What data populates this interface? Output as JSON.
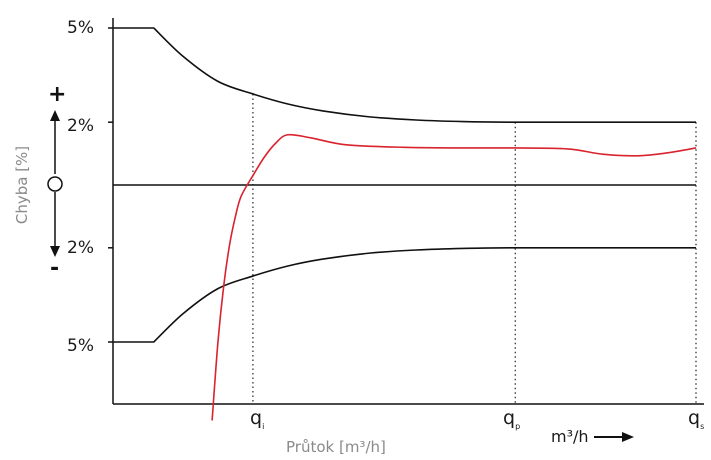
{
  "chart_data": {
    "type": "line",
    "title": "",
    "xlabel": "Průtok [m³/h]",
    "ylabel": "Chyba [%]",
    "x_unit_label": "m³/h",
    "x_ticks": [
      {
        "main": "q",
        "sub": "i"
      },
      {
        "main": "q",
        "sub": "p"
      },
      {
        "main": "q",
        "sub": "s"
      }
    ],
    "y_tick_labels": [
      {
        "label": "5%",
        "value": 5
      },
      {
        "label": "2%",
        "value": 2
      },
      {
        "label": "2%",
        "value": -2
      },
      {
        "label": "5%",
        "value": -5
      }
    ],
    "sign_labels": {
      "plus": "+",
      "zero": "○",
      "minus": "-"
    },
    "x_marks": {
      "qi": 0.24,
      "qp": 0.69,
      "qs": 1.0
    },
    "ylim": [
      -7.5,
      8
    ],
    "xlim": [
      0,
      1
    ],
    "grid": false,
    "series": [
      {
        "role": "upper_limit",
        "color": "#111111",
        "x": [
          0,
          0.07,
          0.12,
          0.18,
          0.24,
          0.3,
          0.36,
          0.44,
          0.52,
          0.6,
          0.69,
          0.8,
          0.9,
          1.0
        ],
        "y": [
          5,
          5,
          4.1,
          3.3,
          2.9,
          2.58,
          2.36,
          2.17,
          2.07,
          2.02,
          2.0,
          2.0,
          2.0,
          2.0
        ]
      },
      {
        "role": "lower_limit",
        "color": "#111111",
        "x": [
          0,
          0.07,
          0.12,
          0.18,
          0.24,
          0.3,
          0.36,
          0.44,
          0.52,
          0.6,
          0.69,
          0.8,
          0.9,
          1.0
        ],
        "y": [
          -5,
          -5,
          -4.1,
          -3.3,
          -2.9,
          -2.58,
          -2.36,
          -2.17,
          -2.07,
          -2.02,
          -2.0,
          -2.0,
          -2.0,
          -2.0
        ]
      },
      {
        "role": "zero_line",
        "color": "#111111",
        "x": [
          0,
          1.0
        ],
        "y": [
          0,
          0
        ]
      },
      {
        "role": "meter_error",
        "color": "#d9232e",
        "x": [
          0.17,
          0.18,
          0.19,
          0.2,
          0.21,
          0.22,
          0.24,
          0.26,
          0.28,
          0.3,
          0.34,
          0.4,
          0.5,
          0.6,
          0.69,
          0.78,
          0.84,
          0.9,
          0.95,
          1.0
        ],
        "y": [
          -7.5,
          -5.0,
          -3.2,
          -1.9,
          -1.0,
          -0.35,
          0.3,
          0.9,
          1.35,
          1.6,
          1.5,
          1.28,
          1.2,
          1.18,
          1.18,
          1.15,
          0.98,
          0.93,
          1.02,
          1.18
        ]
      }
    ]
  }
}
